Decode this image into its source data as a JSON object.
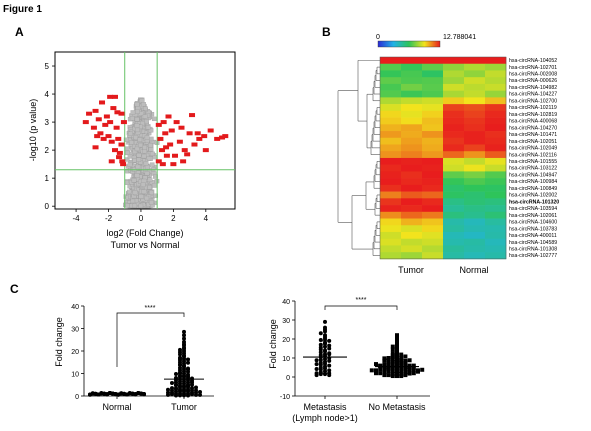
{
  "figure_title": "Figure 1",
  "panels": {
    "a": "A",
    "b": "B",
    "c": "C"
  },
  "chart_data": [
    {
      "id": "volcano",
      "type": "scatter",
      "title": "",
      "xlabel": "log2 (Fold Change)",
      "xlabel2": "Tumor vs Normal",
      "ylabel": "-log10 (p value)",
      "xlim": [
        -5.3,
        5.8
      ],
      "ylim": [
        -0.1,
        5.5
      ],
      "xticks": [
        -4,
        -2,
        0,
        2,
        4
      ],
      "yticks": [
        0,
        1,
        2,
        3,
        4,
        5
      ],
      "thresholds": {
        "fold_change_log2": [
          -1,
          1
        ],
        "neg_log10_p": 1.3
      },
      "grey_count": 900,
      "colors": {
        "significant": "#e31a1c",
        "non_significant": "#bdbdbd",
        "threshold": "#66c266"
      },
      "significant_points": [
        [
          -3.4,
          3.0
        ],
        [
          -3.2,
          3.3
        ],
        [
          -2.9,
          2.8
        ],
        [
          -2.8,
          3.4
        ],
        [
          -2.6,
          3.1
        ],
        [
          -2.5,
          2.6
        ],
        [
          -2.4,
          3.7
        ],
        [
          -2.2,
          2.9
        ],
        [
          -2.1,
          3.2
        ],
        [
          -2.0,
          2.5
        ],
        [
          -1.9,
          3.0
        ],
        [
          -1.8,
          2.3
        ],
        [
          -1.7,
          3.5
        ],
        [
          -1.6,
          2.0
        ],
        [
          -1.5,
          2.8
        ],
        [
          -1.4,
          2.4
        ],
        [
          -1.3,
          1.9
        ],
        [
          -1.2,
          2.2
        ],
        [
          -1.15,
          1.6
        ],
        [
          -1.1,
          1.5
        ],
        [
          -2.3,
          2.4
        ],
        [
          -1.9,
          3.9
        ],
        [
          -1.6,
          3.9
        ],
        [
          -2.8,
          2.1
        ],
        [
          -1.2,
          3.3
        ],
        [
          -1.45,
          3.35
        ],
        [
          -2.7,
          2.5
        ],
        [
          -1.35,
          1.75
        ],
        [
          -1.05,
          3.0
        ],
        [
          -1.8,
          1.6
        ],
        [
          1.1,
          1.6
        ],
        [
          1.2,
          2.4
        ],
        [
          1.3,
          2.0
        ],
        [
          1.4,
          3.0
        ],
        [
          1.5,
          2.6
        ],
        [
          1.6,
          1.8
        ],
        [
          1.7,
          3.2
        ],
        [
          1.8,
          2.2
        ],
        [
          1.9,
          2.7
        ],
        [
          2.0,
          1.5
        ],
        [
          2.2,
          3.0
        ],
        [
          2.4,
          2.3
        ],
        [
          2.5,
          2.8
        ],
        [
          2.7,
          2.0
        ],
        [
          3.0,
          2.6
        ],
        [
          3.3,
          2.2
        ],
        [
          3.6,
          2.4
        ],
        [
          3.9,
          2.5
        ],
        [
          4.3,
          2.7
        ],
        [
          4.7,
          2.4
        ],
        [
          5.2,
          2.5
        ],
        [
          1.35,
          1.5
        ],
        [
          2.1,
          1.8
        ],
        [
          2.6,
          1.6
        ],
        [
          1.55,
          2.1
        ],
        [
          2.85,
          1.85
        ],
        [
          3.15,
          3.25
        ],
        [
          1.1,
          2.9
        ],
        [
          4.0,
          2.0
        ],
        [
          5.0,
          2.45
        ],
        [
          3.5,
          2.6
        ]
      ]
    },
    {
      "id": "heatmap",
      "type": "heatmap",
      "colorbar": {
        "min": "0",
        "max": "12.788041"
      },
      "columns": [
        "Tumor",
        "Normal"
      ],
      "rows": [
        "hsa-circRNA-104052",
        "hsa-circRNA-102701",
        "hsa-circRNA-002008",
        "hsa-circRNA-000626",
        "hsa-circRNA-104982",
        "hsa-circRNA-104227",
        "hsa-circRNA-102700",
        "hsa-circRNA-102119",
        "hsa-circRNA-102819",
        "hsa-circRNA-400068",
        "hsa-circRNA-104270",
        "hsa-circRNA-101471",
        "hsa-circRNA-102051",
        "hsa-circRNA-102049",
        "hsa-circRNA-102116",
        "hsa-circRNA-101555",
        "hsa-circRNA-103122",
        "hsa-circRNA-104947",
        "hsa-circRNA-100984",
        "hsa-circRNA-100849",
        "hsa-circRNA-102002",
        "hsa-circRNA-101320",
        "hsa-circRNA-103594",
        "hsa-circRNA-102061",
        "hsa-circRNA-104600",
        "hsa-circRNA-103783",
        "hsa-circRNA-400011",
        "hsa-circRNA-104589",
        "hsa-circRNA-101308",
        "hsa-circRNA-102777"
      ],
      "bold_row": "hsa-circRNA-101320",
      "values": [
        [
          12.8,
          12.8,
          12.8,
          12.8,
          12.8,
          12.8
        ],
        [
          7.0,
          6.5,
          7.2,
          8.0,
          8.5,
          8.2
        ],
        [
          6.5,
          6.8,
          6.2,
          8.5,
          8.0,
          8.8
        ],
        [
          7.2,
          6.9,
          7.0,
          8.2,
          9.0,
          8.6
        ],
        [
          6.8,
          7.5,
          7.1,
          9.0,
          8.7,
          8.9
        ],
        [
          7.0,
          6.6,
          6.9,
          8.4,
          8.8,
          8.1
        ],
        [
          8.5,
          8.8,
          9.0,
          10.0,
          9.6,
          10.2
        ],
        [
          9.2,
          9.6,
          9.4,
          12.2,
          12.0,
          12.4
        ],
        [
          9.8,
          9.4,
          9.9,
          12.5,
          12.2,
          12.6
        ],
        [
          10.0,
          9.7,
          10.2,
          12.6,
          12.4,
          12.7
        ],
        [
          10.4,
          10.6,
          10.1,
          12.7,
          12.5,
          12.8
        ],
        [
          10.8,
          10.5,
          10.9,
          12.6,
          12.7,
          12.5
        ],
        [
          10.2,
          10.7,
          10.4,
          12.4,
          12.7,
          12.6
        ],
        [
          10.6,
          10.9,
          10.5,
          12.6,
          12.2,
          12.7
        ],
        [
          10.9,
          11.2,
          10.8,
          11.6,
          10.9,
          11.8
        ],
        [
          12.8,
          12.7,
          12.8,
          9.2,
          8.8,
          9.4
        ],
        [
          12.6,
          12.8,
          12.7,
          9.0,
          9.5,
          8.9
        ],
        [
          12.7,
          12.5,
          12.8,
          7.2,
          7.6,
          7.0
        ],
        [
          12.8,
          12.6,
          12.7,
          6.5,
          6.9,
          6.6
        ],
        [
          12.5,
          12.8,
          12.6,
          6.0,
          6.4,
          6.2
        ],
        [
          11.2,
          11.8,
          11.6,
          6.2,
          5.9,
          6.4
        ],
        [
          12.4,
          12.8,
          12.6,
          5.4,
          5.8,
          5.6
        ],
        [
          12.7,
          12.6,
          12.8,
          5.0,
          5.4,
          5.2
        ],
        [
          11.0,
          11.6,
          11.3,
          5.6,
          5.2,
          5.8
        ],
        [
          9.8,
          10.4,
          10.1,
          4.6,
          4.2,
          4.8
        ],
        [
          9.5,
          9.2,
          9.8,
          4.8,
          4.4,
          4.5
        ],
        [
          9.0,
          9.6,
          9.3,
          4.3,
          4.0,
          4.6
        ],
        [
          9.2,
          8.8,
          9.0,
          4.5,
          4.7,
          4.2
        ],
        [
          8.8,
          9.1,
          8.6,
          4.9,
          4.6,
          4.4
        ],
        [
          8.5,
          8.2,
          8.9,
          4.7,
          4.3,
          4.6
        ]
      ]
    },
    {
      "id": "scatter-normal-tumor",
      "type": "scatter",
      "ylabel": "Fold change",
      "ylim": [
        0,
        40
      ],
      "yticks": [
        0,
        10,
        20,
        30,
        40
      ],
      "categories": [
        "Normal",
        "Tumor"
      ],
      "significance": "****",
      "groups": [
        {
          "name": "Normal",
          "mean": 1.0,
          "spread_low": 0.6,
          "spread_high": 1.4,
          "n": 100
        },
        {
          "name": "Tumor",
          "mean": 7.5,
          "sd_low": 2.5,
          "sd_high": 16.5,
          "values": [
            28.5,
            27,
            24,
            23,
            22.5,
            21,
            20.5,
            20,
            19.5,
            19,
            18,
            17.5,
            17,
            16.5,
            16,
            15.5,
            15,
            14.5,
            14,
            13.5,
            13,
            12.5,
            12,
            11.5,
            11,
            10.5,
            10,
            10,
            9.5,
            9,
            9,
            8.5,
            8.5,
            8,
            8,
            7.5,
            7.5,
            7,
            7,
            6.5,
            6.5,
            6,
            6,
            6,
            5.5,
            5.5,
            5,
            5,
            5,
            4.5,
            4.5,
            4.5,
            4,
            4,
            4,
            3.5,
            3.5,
            3.5,
            3,
            3,
            3,
            3,
            2.5,
            2.5,
            2.5,
            2,
            2,
            2,
            2,
            1.5,
            1.5,
            1.5,
            1.5,
            1,
            1,
            1,
            1,
            0.8,
            0.8,
            0.5,
            0.5,
            0.5,
            0.3,
            0.3,
            10.8,
            12.2,
            9.8,
            8.8,
            7.8,
            6.8,
            5.8,
            4.8,
            3.8,
            2.8,
            1.8,
            14.8,
            13.8,
            11.8,
            16.2,
            18.5,
            21.5,
            25.5,
            0.2,
            0.2
          ]
        }
      ]
    },
    {
      "id": "scatter-metastasis",
      "type": "scatter",
      "ylabel": "Fold change",
      "ylim": [
        -10,
        40
      ],
      "yticks": [
        -10,
        0,
        10,
        20,
        30,
        40
      ],
      "categories": [
        "Metastasis",
        "No Metastasis"
      ],
      "category_sublabels": [
        "(Lymph node>1)",
        ""
      ],
      "significance": "****",
      "groups": [
        {
          "name": "Metastasis",
          "mean": 10.5,
          "sd_low": 2.0,
          "sd_high": 19.0,
          "values": [
            29,
            26,
            25,
            24,
            22,
            21,
            20,
            19.5,
            19,
            18,
            17.5,
            17,
            16,
            15.5,
            15,
            14,
            13.5,
            13,
            12.5,
            12,
            11.5,
            11,
            10.5,
            10,
            9.5,
            9,
            8.5,
            8,
            7.5,
            7,
            6.5,
            6,
            5.5,
            5,
            4.5,
            4,
            3.5,
            3,
            2.5,
            2,
            2,
            1.5,
            1.5,
            1,
            1,
            23,
            16.5,
            14.5,
            12,
            8.8,
            6.8,
            4.2
          ]
        },
        {
          "name": "No Metastasis",
          "mean": 5.5,
          "sd_low": 2.5,
          "sd_high": 8.5,
          "values": [
            22,
            21,
            20,
            18,
            17,
            15.5,
            14,
            13,
            12.5,
            12,
            11.5,
            11,
            10.5,
            10,
            10,
            9.5,
            9.5,
            9,
            9,
            8.5,
            8.5,
            8,
            8,
            7.5,
            7.5,
            7,
            7,
            7,
            6.5,
            6.5,
            6.5,
            6,
            6,
            6,
            5.5,
            5.5,
            5.5,
            5,
            5,
            5,
            5,
            4.5,
            4.5,
            4.5,
            4.5,
            4,
            4,
            4,
            4,
            3.5,
            3.5,
            3.5,
            3.5,
            3,
            3,
            3,
            3,
            2.5,
            2.5,
            2.5,
            2,
            2,
            2,
            1.5,
            1.5,
            1.5,
            1,
            1,
            1,
            0.5,
            0.5,
            0.5,
            16,
            14.5,
            11.8,
            10.8,
            9.8,
            8.8,
            7.8,
            6.8,
            5.8,
            4.8,
            3.8,
            2.8,
            1.8
          ]
        }
      ]
    }
  ]
}
